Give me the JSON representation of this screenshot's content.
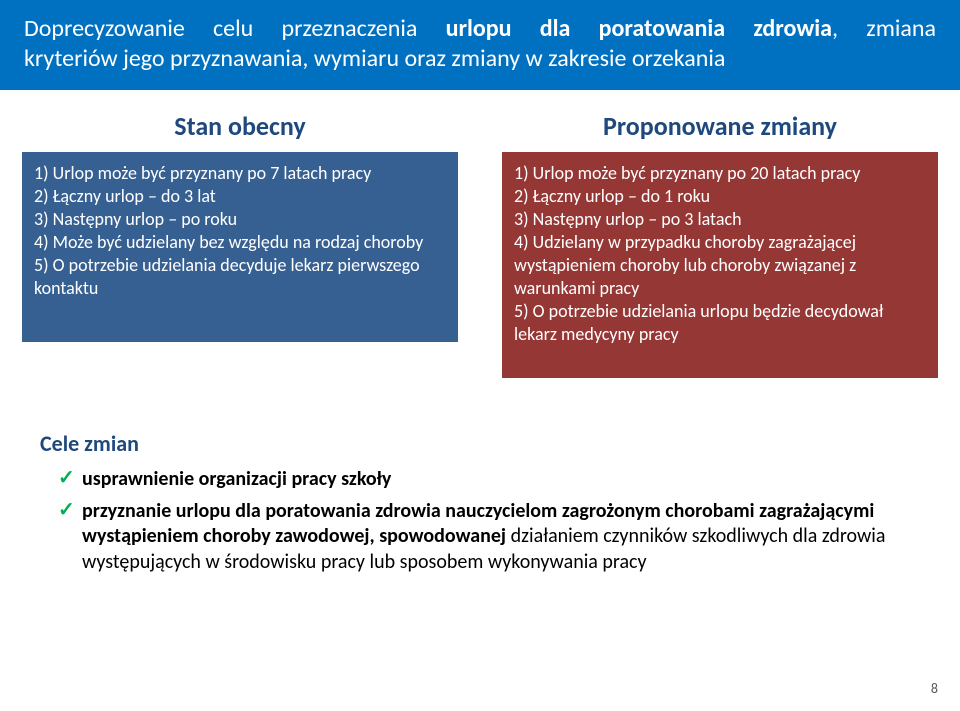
{
  "title": {
    "line1_pre": "Doprecyzowanie celu przeznaczenia ",
    "line1_em": "urlopu dla poratowania zdrowia",
    "line1_post": ", zmiana",
    "line2": "kryteriów jego przyznawania, wymiaru oraz zmiany w zakresie orzekania"
  },
  "columns": {
    "left": {
      "heading": "Stan obecny",
      "panel_text": "1) Urlop może być przyznany po 7 latach pracy\n2) Łączny urlop – do 3 lat\n3) Następny urlop – po roku\n4) Może być udzielany bez względu na rodzaj choroby\n5) O potrzebie udzielania decyduje lekarz pierwszego kontaktu"
    },
    "right": {
      "heading": "Proponowane zmiany",
      "panel_text": "1) Urlop może być przyznany po 20 latach pracy\n2) Łączny urlop – do 1 roku\n3) Następny urlop – po 3 latach\n4) Udzielany w przypadku choroby zagrażającej wystąpieniem choroby lub choroby związanej z warunkami pracy\n5) O potrzebie udzielania urlopu będzie decydował lekarz medycyny pracy"
    }
  },
  "goals": {
    "heading": "Cele zmian",
    "items": [
      {
        "bold": "usprawnienie organizacji pracy szkoły",
        "rest": ""
      },
      {
        "bold": "przyznanie urlopu dla poratowania zdrowia nauczycielom zagrożonym chorobami zagrażającymi wystąpieniem choroby zawodowej, spowodowanej",
        "rest": " działaniem czynników szkodliwych dla zdrowia występujących w środowisku pracy lub sposobem wykonywania pracy"
      }
    ]
  },
  "page_number": "8",
  "colors": {
    "band_bg": "#0070c0",
    "panel_left_bg": "#376092",
    "panel_right_bg": "#953735",
    "heading_color": "#1f497d",
    "tick_color": "#00b050"
  }
}
